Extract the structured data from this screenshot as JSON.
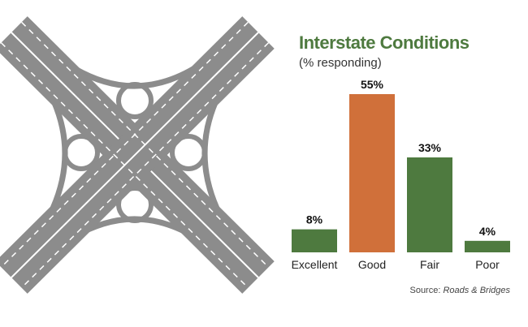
{
  "chart_data": {
    "type": "bar",
    "title": "Interstate Conditions",
    "subtitle": "(% responding)",
    "categories": [
      "Excellent",
      "Good",
      "Fair",
      "Poor"
    ],
    "values": [
      8,
      55,
      33,
      4
    ],
    "value_labels": [
      "8%",
      "55%",
      "33%",
      "4%"
    ],
    "ylim": [
      0,
      55
    ],
    "grid": false,
    "bar_colors": [
      "#4e7a3f",
      "#d0703a",
      "#4e7a3f",
      "#4e7a3f"
    ]
  },
  "source": {
    "prefix": "Source: ",
    "publication": "Roads & Bridges"
  },
  "colors": {
    "title": "#4e7a3f",
    "illustration_road": "#8c8c8c",
    "illustration_lane": "#ffffff"
  },
  "illustration": {
    "icon": "cloverleaf-interchange-icon"
  }
}
